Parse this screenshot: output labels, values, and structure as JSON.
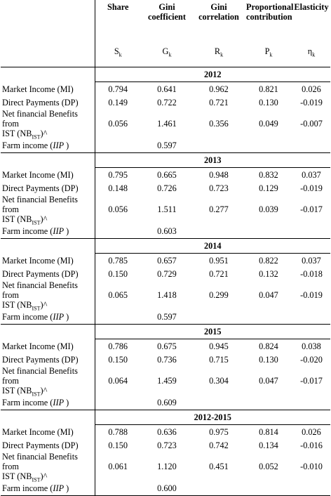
{
  "header": {
    "columns": [
      {
        "title": "Share",
        "symbol": "S",
        "sub": "k"
      },
      {
        "title_1": "Gini",
        "title_2": "coefficient",
        "symbol": "G",
        "sub": "k"
      },
      {
        "title_1": "Gini",
        "title_2": "correlation",
        "symbol": "R",
        "sub": "k"
      },
      {
        "title_1": "Proportional",
        "title_2": "contribution",
        "symbol": "P",
        "sub": "k"
      },
      {
        "title": "Elasticity",
        "symbol": "η",
        "sub": "k"
      }
    ]
  },
  "row_labels": {
    "mi": "Market Income (MI)",
    "dp": "Direct Payments (DP)",
    "nb_1": "Net financial Benefits from",
    "nb_2_pre": "IST (NB",
    "nb_2_sub": "IST",
    "nb_2_post": ")^",
    "farm_pre": "Farm income (",
    "farm_it": "IIP",
    "farm_post": " )"
  },
  "periods": [
    {
      "year": "2012",
      "mi": [
        "0.794",
        "0.641",
        "0.962",
        "0.821",
        "0.026"
      ],
      "dp": [
        "0.149",
        "0.722",
        "0.721",
        "0.130",
        "-0.019"
      ],
      "nb": [
        "0.056",
        "1.461",
        "0.356",
        "0.049",
        "-0.007"
      ],
      "farm_gini": "0.597"
    },
    {
      "year": "2013",
      "mi": [
        "0.795",
        "0.665",
        "0.948",
        "0.832",
        "0.037"
      ],
      "dp": [
        "0.148",
        "0.726",
        "0.723",
        "0.129",
        "-0.019"
      ],
      "nb": [
        "0.056",
        "1.511",
        "0.277",
        "0.039",
        "-0.017"
      ],
      "farm_gini": "0.603"
    },
    {
      "year": "2014",
      "mi": [
        "0.785",
        "0.657",
        "0.951",
        "0.822",
        "0.037"
      ],
      "dp": [
        "0.150",
        "0.729",
        "0.721",
        "0.132",
        "-0.018"
      ],
      "nb": [
        "0.065",
        "1.418",
        "0.299",
        "0.047",
        "-0.019"
      ],
      "farm_gini": "0.597"
    },
    {
      "year": "2015",
      "mi": [
        "0.786",
        "0.675",
        "0.945",
        "0.824",
        "0.038"
      ],
      "dp": [
        "0.150",
        "0.736",
        "0.715",
        "0.130",
        "-0.020"
      ],
      "nb": [
        "0.064",
        "1.459",
        "0.304",
        "0.047",
        "-0.017"
      ],
      "farm_gini": "0.609"
    },
    {
      "year": "2012-2015",
      "mi": [
        "0.788",
        "0.636",
        "0.975",
        "0.814",
        "0.026"
      ],
      "dp": [
        "0.150",
        "0.723",
        "0.742",
        "0.134",
        "-0.016"
      ],
      "nb": [
        "0.061",
        "1.120",
        "0.451",
        "0.052",
        "-0.010"
      ],
      "farm_gini": "0.600"
    }
  ]
}
